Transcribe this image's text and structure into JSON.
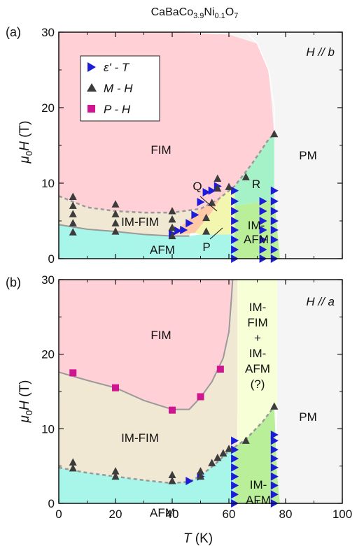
{
  "title_formula": {
    "base": "CaBaCo",
    "sub1": "3.9",
    "mid": "Ni",
    "sub2": "0.1",
    "end": "O",
    "sub3": "7"
  },
  "colors": {
    "FIM": "#ffd1d6",
    "IM_FIM": "#f1e8d4",
    "AFM": "#a8f6ea",
    "PM": "#f5f5f5",
    "IM_AFM": "#b9ef99",
    "R": "#a6f2c8",
    "Q": "#ffc8a6",
    "P": "#f2f6ae",
    "mixed": "#f7ffd7",
    "triangle": "#3c3c3c",
    "square": "#d01590",
    "tri_right": "#1c1cd9",
    "boundary": "#9a9a9a"
  },
  "axis_labels": {
    "x_var": "T",
    "x_unit": " (K)",
    "y_pre": "μ",
    "y_sub": "0",
    "y_var": "H",
    "y_unit": " (T)"
  },
  "legend": {
    "e_T": "ε' - T",
    "M_H": "M - H",
    "P_H": "P - H"
  },
  "chart_data": [
    {
      "panel": "(a)",
      "type": "scatter",
      "field_direction": "H // b",
      "xlim": [
        0,
        100
      ],
      "ylim": [
        0,
        30
      ],
      "x_ticks": [],
      "y_ticks": [
        "0",
        "10",
        "20",
        "30"
      ],
      "regions": [
        "FIM",
        "IM-FIM",
        "AFM",
        "Q",
        "P",
        "R",
        "IM-",
        "AFM",
        "PM"
      ],
      "series": [
        {
          "marker": "triangle-right",
          "points": [
            [
              40,
              3.3
            ],
            [
              42,
              3.7
            ],
            [
              44,
              3.8
            ],
            [
              46,
              4.7
            ],
            [
              48,
              5.8
            ],
            [
              50,
              7.5
            ],
            [
              52,
              8.8
            ],
            [
              54,
              9.0
            ],
            [
              56,
              9.6
            ],
            [
              62,
              0
            ],
            [
              62,
              1.2
            ],
            [
              62,
              2.5
            ],
            [
              62,
              3.8
            ],
            [
              62,
              5.0
            ],
            [
              62,
              6.3
            ],
            [
              62,
              7.6
            ],
            [
              62,
              9.0
            ],
            [
              72,
              0
            ],
            [
              72,
              1.2
            ],
            [
              72,
              2.5
            ],
            [
              72,
              3.8
            ],
            [
              72,
              5.0
            ],
            [
              72,
              6.3
            ],
            [
              72,
              7.6
            ],
            [
              76,
              0
            ],
            [
              76,
              1.2
            ],
            [
              76,
              2.5
            ],
            [
              76,
              3.8
            ],
            [
              76,
              5.0
            ],
            [
              76,
              6.3
            ],
            [
              76,
              7.6
            ],
            [
              76,
              9.0
            ]
          ]
        },
        {
          "marker": "triangle-up",
          "points": [
            [
              5,
              3.5
            ],
            [
              5,
              4.7
            ],
            [
              5,
              5.9
            ],
            [
              5,
              7.0
            ],
            [
              5,
              8.2
            ],
            [
              20,
              3.6
            ],
            [
              20,
              4.7
            ],
            [
              20,
              5.9
            ],
            [
              20,
              7.2
            ],
            [
              40,
              3.0
            ],
            [
              40,
              4.1
            ],
            [
              40,
              5.2
            ],
            [
              40,
              6.3
            ],
            [
              52,
              3.6
            ],
            [
              52,
              5.4
            ],
            [
              54,
              7.4
            ],
            [
              56,
              9.3
            ],
            [
              56,
              10.6
            ],
            [
              60,
              9.5
            ],
            [
              66,
              10.8
            ],
            [
              76,
              16.5
            ]
          ]
        }
      ]
    },
    {
      "panel": "(b)",
      "type": "scatter",
      "field_direction": "H // a",
      "xlim": [
        0,
        100
      ],
      "ylim": [
        0,
        30
      ],
      "x_ticks": [
        "0",
        "20",
        "40",
        "60",
        "80",
        "100"
      ],
      "y_ticks": [
        "0",
        "10",
        "20",
        "30"
      ],
      "regions": [
        "FIM",
        "IM-FIM",
        "AFM",
        "IM-",
        "FIM",
        "+",
        "IM-",
        "AFM",
        "(?)",
        "IM-",
        "AFM",
        "PM"
      ],
      "series": [
        {
          "marker": "triangle-right",
          "points": [
            [
              46,
              3.0
            ],
            [
              50,
              3.6
            ],
            [
              62,
              0
            ],
            [
              62,
              1.2
            ],
            [
              62,
              2.4
            ],
            [
              62,
              3.6
            ],
            [
              62,
              4.8
            ],
            [
              62,
              6.0
            ],
            [
              62,
              7.2
            ],
            [
              62,
              8.4
            ],
            [
              76,
              0
            ],
            [
              76,
              1.2
            ],
            [
              76,
              2.4
            ],
            [
              76,
              3.6
            ],
            [
              76,
              4.8
            ],
            [
              76,
              6.0
            ],
            [
              76,
              7.2
            ],
            [
              76,
              8.4
            ],
            [
              76,
              9.2
            ]
          ]
        },
        {
          "marker": "triangle-up",
          "points": [
            [
              5,
              4.7
            ],
            [
              5,
              5.5
            ],
            [
              20,
              3.6
            ],
            [
              20,
              4.3
            ],
            [
              40,
              3.0
            ],
            [
              40,
              3.8
            ],
            [
              50,
              3.6
            ],
            [
              50,
              4.3
            ],
            [
              54,
              5.4
            ],
            [
              56,
              6.1
            ],
            [
              58,
              6.7
            ],
            [
              60,
              7.3
            ],
            [
              66,
              8.4
            ],
            [
              76,
              13.0
            ]
          ]
        },
        {
          "marker": "square",
          "points": [
            [
              5,
              17.5
            ],
            [
              20,
              15.5
            ],
            [
              40,
              12.5
            ],
            [
              50,
              14.3
            ],
            [
              57,
              18.0
            ]
          ]
        }
      ]
    }
  ]
}
